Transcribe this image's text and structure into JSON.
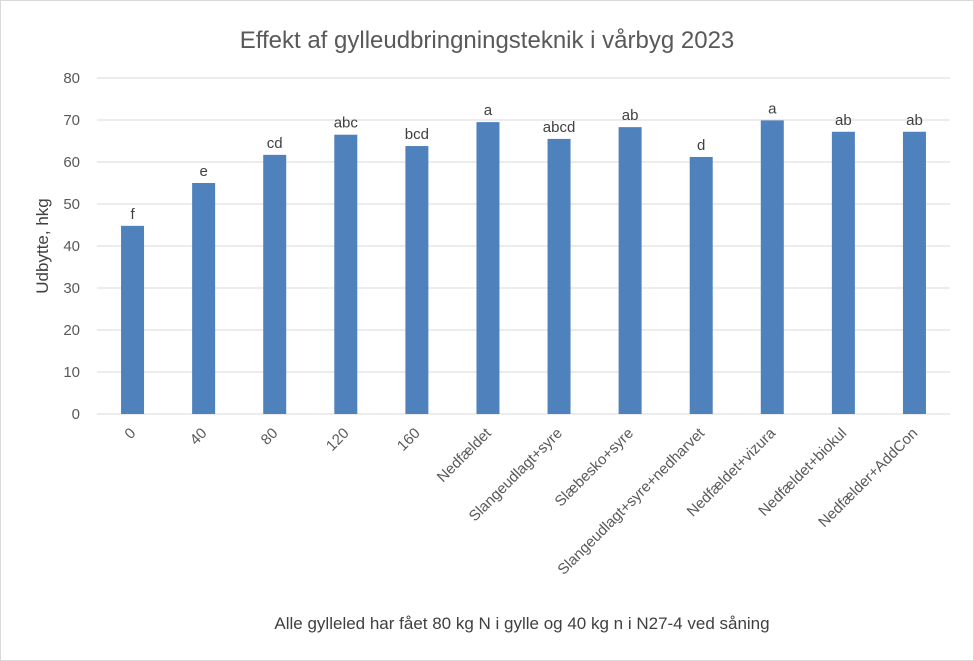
{
  "chart_data": {
    "type": "bar",
    "title": "Effekt af gylleudbringningsteknik i vårbyg 2023",
    "xlabel": "Alle gylleled har fået 80 kg N i gylle og 40 kg n i N27-4 ved såning",
    "ylabel": "Udbytte, hkg",
    "ylim": [
      0,
      80
    ],
    "yticks": [
      0,
      10,
      20,
      30,
      40,
      50,
      60,
      70,
      80
    ],
    "grid": true,
    "categories": [
      "0",
      "40",
      "80",
      "120",
      "160",
      "Nedfældet",
      "Slangeudlagt+syre",
      "Slæbesko+syre",
      "Slangeudlagt+syre+nedharvet",
      "Nedfældet+vizura",
      "Nedfældet+biokul",
      "Nedfælder+AddCon"
    ],
    "series": [
      {
        "values": [
          44.8,
          55.0,
          61.7,
          66.5,
          63.8,
          69.5,
          65.5,
          68.3,
          61.2,
          69.9,
          67.2,
          67.2
        ],
        "labels": [
          "f",
          "e",
          "cd",
          "abc",
          "bcd",
          "a",
          "abcd",
          "ab",
          "d",
          "a",
          "ab",
          "ab"
        ],
        "color": "#4f81bd"
      }
    ]
  }
}
